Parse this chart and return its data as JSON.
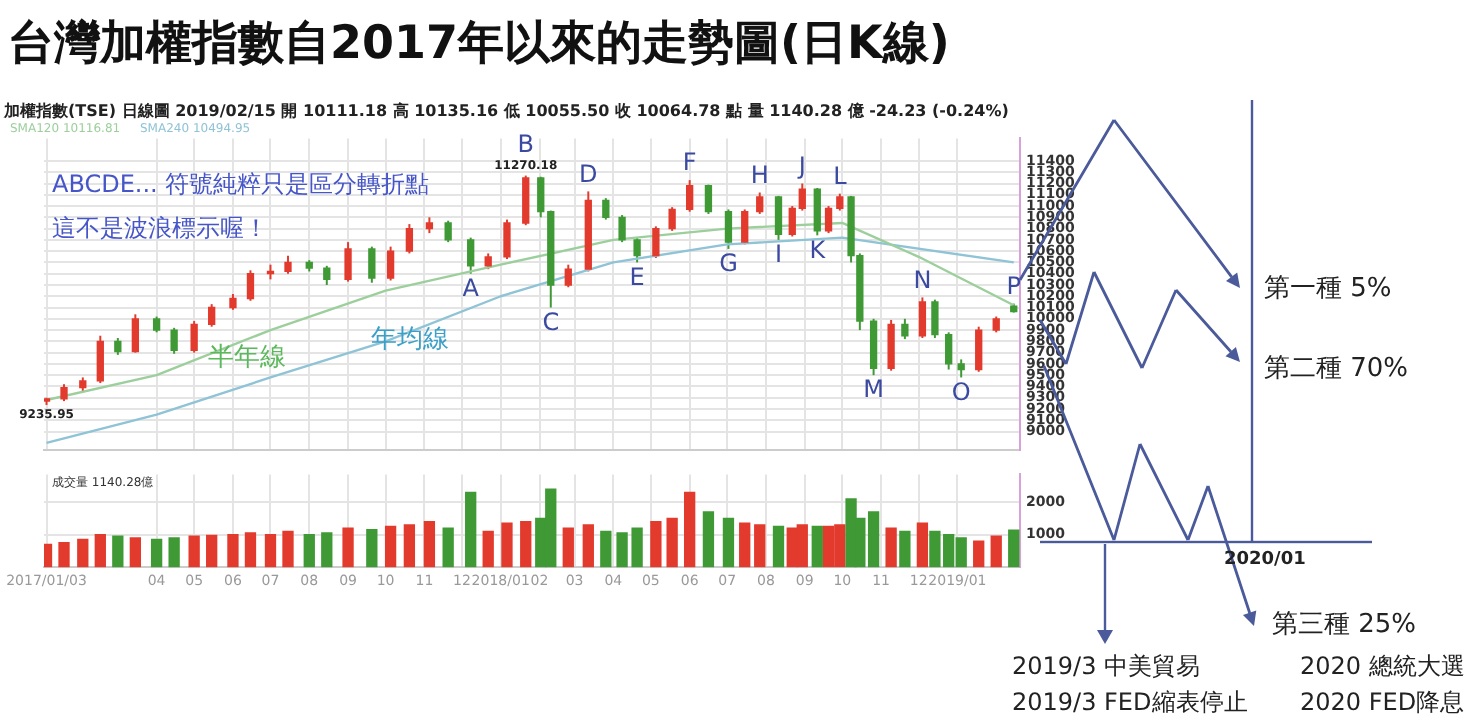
{
  "chart_data": [
    {
      "type": "candlestick",
      "title": "台灣加權指數自2017年以來的走勢圖(日K線)",
      "x": [
        "2017-01-03",
        "2017-01-17",
        "2017-02-01",
        "2017-02-15",
        "2017-03-01",
        "2017-03-15",
        "2017-04-01",
        "2017-04-15",
        "2017-05-01",
        "2017-05-15",
        "2017-06-01",
        "2017-06-15",
        "2017-07-01",
        "2017-07-15",
        "2017-08-01",
        "2017-08-15",
        "2017-09-01",
        "2017-09-20",
        "2017-10-05",
        "2017-10-20",
        "2017-11-05",
        "2017-11-20",
        "2017-12-08",
        "2017-12-22",
        "2018-01-06",
        "2018-01-21",
        "2018-02-02",
        "2018-02-10",
        "2018-02-24",
        "2018-03-12",
        "2018-03-26",
        "2018-04-08",
        "2018-04-20",
        "2018-05-05",
        "2018-05-18",
        "2018-06-01",
        "2018-06-16",
        "2018-07-02",
        "2018-07-15",
        "2018-07-27",
        "2018-08-11",
        "2018-08-22",
        "2018-08-30",
        "2018-09-11",
        "2018-09-20",
        "2018-09-29",
        "2018-10-08",
        "2018-10-15",
        "2018-10-26",
        "2018-11-09",
        "2018-11-20",
        "2018-12-04",
        "2018-12-14",
        "2018-12-25",
        "2019-01-04",
        "2019-01-18",
        "2019-02-01",
        "2019-02-15"
      ],
      "ohlc": [
        [
          9270,
          9300,
          9235.95,
          9290
        ],
        [
          9290,
          9420,
          9270,
          9390
        ],
        [
          9390,
          9480,
          9350,
          9450
        ],
        [
          9450,
          9850,
          9430,
          9800
        ],
        [
          9800,
          9830,
          9680,
          9710
        ],
        [
          9710,
          10040,
          9700,
          10000
        ],
        [
          10000,
          10020,
          9880,
          9900
        ],
        [
          9900,
          9920,
          9690,
          9720
        ],
        [
          9720,
          9980,
          9700,
          9950
        ],
        [
          9950,
          10130,
          9930,
          10100
        ],
        [
          10100,
          10220,
          10080,
          10180
        ],
        [
          10180,
          10430,
          10160,
          10400
        ],
        [
          10400,
          10480,
          10350,
          10420
        ],
        [
          10420,
          10560,
          10400,
          10500
        ],
        [
          10500,
          10520,
          10420,
          10450
        ],
        [
          10450,
          10470,
          10300,
          10350
        ],
        [
          10350,
          10680,
          10330,
          10620
        ],
        [
          10620,
          10640,
          10320,
          10360
        ],
        [
          10360,
          10640,
          10340,
          10600
        ],
        [
          10600,
          10840,
          10580,
          10800
        ],
        [
          10800,
          10900,
          10760,
          10850
        ],
        [
          10850,
          10870,
          10680,
          10700
        ],
        [
          10700,
          10720,
          10400,
          10470
        ],
        [
          10470,
          10580,
          10440,
          10550
        ],
        [
          10550,
          10880,
          10530,
          10850
        ],
        [
          10850,
          11270.18,
          10830,
          11250
        ],
        [
          11250,
          11260,
          10900,
          10950
        ],
        [
          10950,
          10960,
          10100,
          10300
        ],
        [
          10300,
          10480,
          10280,
          10440
        ],
        [
          10440,
          11130,
          10420,
          11050
        ],
        [
          11050,
          11070,
          10880,
          10900
        ],
        [
          10900,
          10920,
          10680,
          10700
        ],
        [
          10700,
          10720,
          10500,
          10560
        ],
        [
          10560,
          10820,
          10540,
          10800
        ],
        [
          10800,
          10990,
          10780,
          10970
        ],
        [
          10970,
          11230,
          10950,
          11180
        ],
        [
          11180,
          11190,
          10930,
          10950
        ],
        [
          10950,
          10970,
          10620,
          10680
        ],
        [
          10680,
          10970,
          10660,
          10950
        ],
        [
          10950,
          11120,
          10930,
          11080
        ],
        [
          11080,
          11090,
          10700,
          10750
        ],
        [
          10750,
          11000,
          10730,
          10980
        ],
        [
          10980,
          11200,
          10960,
          11150
        ],
        [
          11150,
          11160,
          10740,
          10780
        ],
        [
          10780,
          11000,
          10760,
          10980
        ],
        [
          10980,
          11110,
          10960,
          11080
        ],
        [
          11080,
          11090,
          10500,
          10560
        ],
        [
          10560,
          10580,
          9900,
          9980
        ],
        [
          9980,
          10000,
          9500,
          9560
        ],
        [
          9560,
          9990,
          9540,
          9950
        ],
        [
          9950,
          10000,
          9820,
          9850
        ],
        [
          9850,
          10190,
          9830,
          10150
        ],
        [
          10150,
          10170,
          9830,
          9860
        ],
        [
          9860,
          9880,
          9550,
          9600
        ],
        [
          9600,
          9640,
          9480,
          9550
        ],
        [
          9550,
          9930,
          9530,
          9900
        ],
        [
          9900,
          10020,
          9880,
          10000
        ],
        [
          10111.18,
          10135.16,
          10055.5,
          10064.78
        ]
      ],
      "series": [
        {
          "type": "line",
          "name": "半年線",
          "color": "#9ccf9c",
          "x": [
            "2017-01-03",
            "2017-04-01",
            "2017-07-01",
            "2017-10-01",
            "2018-01-01",
            "2018-04-01",
            "2018-07-01",
            "2018-10-01",
            "2018-12-01",
            "2019-02-15"
          ],
          "values": [
            9280,
            9500,
            9900,
            10250,
            10480,
            10700,
            10800,
            10850,
            10550,
            10120
          ]
        },
        {
          "type": "line",
          "name": "年均線",
          "color": "#8fc3d6",
          "x": [
            "2017-01-03",
            "2017-04-01",
            "2017-07-01",
            "2017-10-01",
            "2018-01-01",
            "2018-04-01",
            "2018-07-01",
            "2018-10-01",
            "2019-02-15"
          ],
          "values": [
            8900,
            9150,
            9480,
            9800,
            10200,
            10500,
            10660,
            10720,
            10500
          ]
        }
      ],
      "xlim": [
        "2017-01-01",
        "2019-02-20"
      ],
      "xticks": [
        {
          "value": "2017-01-03",
          "label": null
        },
        {
          "value": "2017-04-01",
          "label": null
        },
        {
          "value": "2017-05-01",
          "label": null
        },
        {
          "value": "2017-06-01",
          "label": null
        },
        {
          "value": "2017-07-01",
          "label": null
        },
        {
          "value": "2017-08-01",
          "label": null
        },
        {
          "value": "2017-09-01",
          "label": null
        },
        {
          "value": "2017-10-01",
          "label": null
        },
        {
          "value": "2017-11-01",
          "label": null
        },
        {
          "value": "2017-12-01",
          "label": null
        },
        {
          "value": "2018-01-01",
          "label": null
        },
        {
          "value": "2018-02-01",
          "label": null
        },
        {
          "value": "2018-03-01",
          "label": null
        },
        {
          "value": "2018-04-01",
          "label": null
        },
        {
          "value": "2018-05-01",
          "label": null
        },
        {
          "value": "2018-06-01",
          "label": null
        },
        {
          "value": "2018-07-01",
          "label": null
        },
        {
          "value": "2018-08-01",
          "label": null
        },
        {
          "value": "2018-09-01",
          "label": null
        },
        {
          "value": "2018-10-01",
          "label": null
        },
        {
          "value": "2018-11-01",
          "label": null
        },
        {
          "value": "2018-12-01",
          "label": null
        },
        {
          "value": "2019-01-01",
          "label": null
        }
      ],
      "ylim": [
        8840,
        11600
      ],
      "yticks": [
        9000,
        9100,
        9200,
        9300,
        9400,
        9500,
        9600,
        9700,
        9800,
        9900,
        10000,
        10100,
        10200,
        10300,
        10400,
        10500,
        10600,
        10700,
        10800,
        10900,
        11000,
        11100,
        11200,
        11300,
        11400
      ],
      "tick_labels": "y",
      "grid": true,
      "annotations": [
        "加權指數(TSE)  日線圖  2019/02/15  開 10111.18  高 10135.16  低 10055.50  收 10064.78 點  量 1140.28 億  -24.23 (-0.24%)",
        "SMA120 10116.81",
        "SMA240 10494.95",
        "ABCDE... 符號純粹只是區分轉折點",
        "這不是波浪標示喔！",
        "第一種 5%",
        "第二種 70%",
        "2020/01",
        "第三種 25%",
        "2019/3 中美貿易",
        "2019/3 FED縮表停止",
        "2020 總統大選",
        "2020 FED降息",
        {
          "text": "9235.95",
          "x": "2017-01-03",
          "y": 9235.95
        },
        {
          "text": "A",
          "x": "2017-12-08",
          "y": 10400
        },
        {
          "text": "11270.18",
          "x": "2018-01-21",
          "y": 11270.18
        },
        {
          "text": "B",
          "x": "2018-01-21",
          "y": 11270.18
        },
        {
          "text": "C",
          "x": "2018-02-10",
          "y": 10100
        },
        {
          "text": "D",
          "x": "2018-03-12",
          "y": 11130
        },
        {
          "text": "E",
          "x": "2018-04-20",
          "y": 10500
        },
        {
          "text": "F",
          "x": "2018-06-01",
          "y": 11230
        },
        {
          "text": "G",
          "x": "2018-07-02",
          "y": 10620
        },
        {
          "text": "H",
          "x": "2018-07-27",
          "y": 11120
        },
        {
          "text": "I",
          "x": "2018-08-11",
          "y": 10700
        },
        {
          "text": "J",
          "x": "2018-08-30",
          "y": 11200
        },
        {
          "text": "K",
          "x": "2018-09-11",
          "y": 10740
        },
        {
          "text": "L",
          "x": "2018-09-29",
          "y": 11110
        },
        {
          "text": "M",
          "x": "2018-10-26",
          "y": 9500
        },
        {
          "text": "N",
          "x": "2018-12-04",
          "y": 10190
        },
        {
          "text": "O",
          "x": "2019-01-04",
          "y": 9480
        },
        {
          "text": "P",
          "x": "2019-02-15",
          "y": 10135.16
        }
      ]
    },
    {
      "type": "bar",
      "x": [
        "2017-01-03",
        "2017-01-17",
        "2017-02-01",
        "2017-02-15",
        "2017-03-01",
        "2017-03-15",
        "2017-04-01",
        "2017-04-15",
        "2017-05-01",
        "2017-05-15",
        "2017-06-01",
        "2017-06-15",
        "2017-07-01",
        "2017-07-15",
        "2017-08-01",
        "2017-08-15",
        "2017-09-01",
        "2017-09-20",
        "2017-10-05",
        "2017-10-20",
        "2017-11-05",
        "2017-11-20",
        "2017-12-08",
        "2017-12-22",
        "2018-01-06",
        "2018-01-21",
        "2018-02-02",
        "2018-02-10",
        "2018-02-24",
        "2018-03-12",
        "2018-03-26",
        "2018-04-08",
        "2018-04-20",
        "2018-05-05",
        "2018-05-18",
        "2018-06-01",
        "2018-06-16",
        "2018-07-02",
        "2018-07-15",
        "2018-07-27",
        "2018-08-11",
        "2018-08-22",
        "2018-08-30",
        "2018-09-11",
        "2018-09-20",
        "2018-09-29",
        "2018-10-08",
        "2018-10-15",
        "2018-10-26",
        "2018-11-09",
        "2018-11-20",
        "2018-12-04",
        "2018-12-14",
        "2018-12-25",
        "2019-01-04",
        "2019-01-18",
        "2019-02-01",
        "2019-02-15"
      ],
      "values": [
        700,
        750,
        850,
        1000,
        950,
        900,
        850,
        900,
        950,
        980,
        1000,
        1050,
        1000,
        1100,
        1000,
        1050,
        1200,
        1150,
        1250,
        1300,
        1400,
        1200,
        2300,
        1100,
        1350,
        1400,
        1500,
        2400,
        1200,
        1300,
        1100,
        1050,
        1200,
        1400,
        1500,
        2300,
        1700,
        1500,
        1350,
        1300,
        1250,
        1200,
        1300,
        1250,
        1250,
        1300,
        2100,
        1500,
        1700,
        1200,
        1100,
        1350,
        1100,
        1000,
        900,
        800,
        950,
        1140
      ],
      "colors": [
        "#e23b2e",
        "#e23b2e",
        "#e23b2e",
        "#e23b2e",
        "#3f9a36",
        "#e23b2e",
        "#3f9a36",
        "#3f9a36",
        "#e23b2e",
        "#e23b2e",
        "#e23b2e",
        "#e23b2e",
        "#e23b2e",
        "#e23b2e",
        "#3f9a36",
        "#3f9a36",
        "#e23b2e",
        "#3f9a36",
        "#e23b2e",
        "#e23b2e",
        "#e23b2e",
        "#3f9a36",
        "#3f9a36",
        "#e23b2e",
        "#e23b2e",
        "#e23b2e",
        "#3f9a36",
        "#3f9a36",
        "#e23b2e",
        "#e23b2e",
        "#3f9a36",
        "#3f9a36",
        "#3f9a36",
        "#e23b2e",
        "#e23b2e",
        "#e23b2e",
        "#3f9a36",
        "#3f9a36",
        "#e23b2e",
        "#e23b2e",
        "#3f9a36",
        "#e23b2e",
        "#e23b2e",
        "#3f9a36",
        "#e23b2e",
        "#e23b2e",
        "#3f9a36",
        "#3f9a36",
        "#3f9a36",
        "#e23b2e",
        "#3f9a36",
        "#e23b2e",
        "#3f9a36",
        "#3f9a36",
        "#3f9a36",
        "#e23b2e",
        "#e23b2e",
        "#3f9a36"
      ],
      "xlim": [
        "2017-01-01",
        "2019-02-20"
      ],
      "xticks": [
        {
          "value": "2017-01-03",
          "label": "2017/01/03"
        },
        {
          "value": "2017-04-01",
          "label": "04"
        },
        {
          "value": "2017-05-01",
          "label": "05"
        },
        {
          "value": "2017-06-01",
          "label": "06"
        },
        {
          "value": "2017-07-01",
          "label": "07"
        },
        {
          "value": "2017-08-01",
          "label": "08"
        },
        {
          "value": "2017-09-01",
          "label": "09"
        },
        {
          "value": "2017-10-01",
          "label": "10"
        },
        {
          "value": "2017-11-01",
          "label": "11"
        },
        {
          "value": "2017-12-01",
          "label": "12"
        },
        {
          "value": "2018-01-01",
          "label": "2018/01"
        },
        {
          "value": "2018-02-01",
          "label": "02"
        },
        {
          "value": "2018-03-01",
          "label": "03"
        },
        {
          "value": "2018-04-01",
          "label": "04"
        },
        {
          "value": "2018-05-01",
          "label": "05"
        },
        {
          "value": "2018-06-01",
          "label": "06"
        },
        {
          "value": "2018-07-01",
          "label": "07"
        },
        {
          "value": "2018-08-01",
          "label": "08"
        },
        {
          "value": "2018-09-01",
          "label": "09"
        },
        {
          "value": "2018-10-01",
          "label": "10"
        },
        {
          "value": "2018-11-01",
          "label": "11"
        },
        {
          "value": "2018-12-01",
          "label": "12"
        },
        {
          "value": "2019-01-01",
          "label": "2019/01"
        }
      ],
      "ylim": [
        0,
        2850
      ],
      "yticks": [
        1000,
        2000
      ],
      "grid": true,
      "annotations": [
        "成交量 1140.28億"
      ]
    }
  ]
}
